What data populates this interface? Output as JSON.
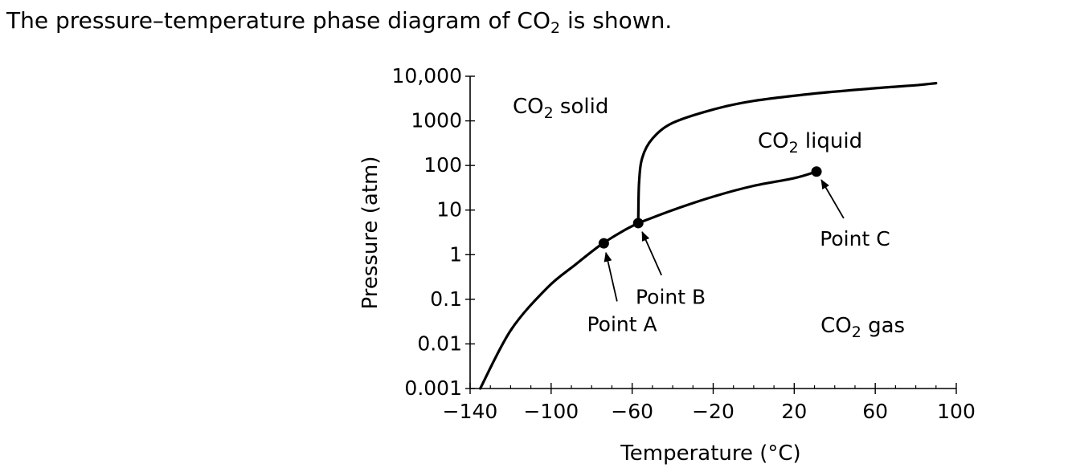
{
  "question": {
    "before": "The pressure–temperature phase diagram of CO",
    "subscript": "2",
    "after": " is shown."
  },
  "chart_data": {
    "type": "line",
    "xlabel": "Temperature (°C)",
    "ylabel": "Pressure (atm)",
    "xlim": [
      -140,
      100
    ],
    "ylim": [
      0.001,
      10000
    ],
    "y_scale": "log",
    "x_ticks": [
      -140,
      -100,
      -60,
      -20,
      20,
      60,
      100
    ],
    "x_tick_labels": [
      "−140",
      "−100",
      "−60",
      "−20",
      "20",
      "60",
      "100"
    ],
    "y_ticks": [
      0.001,
      0.01,
      0.1,
      1,
      10,
      100,
      1000,
      10000
    ],
    "y_tick_labels": [
      "0.001",
      "0.01",
      "0.1",
      "1",
      "10",
      "100",
      "1000",
      "10,000"
    ],
    "grid": false,
    "regions": [
      {
        "base": "CO",
        "sub": "2",
        "rest": " solid",
        "x": -119,
        "y": 1500
      },
      {
        "base": "CO",
        "sub": "2",
        "rest": " liquid",
        "x": 2,
        "y": 250
      },
      {
        "base": "CO",
        "sub": "2",
        "rest": " gas",
        "x": 33,
        "y": 0.018
      }
    ],
    "curves": [
      {
        "name": "sublimation-curve",
        "points": [
          [
            -135,
            0.001
          ],
          [
            -120,
            0.02
          ],
          [
            -102,
            0.18
          ],
          [
            -88,
            0.6
          ],
          [
            -76,
            1.6
          ],
          [
            -65,
            3.3
          ],
          [
            -57,
            5.1
          ]
        ]
      },
      {
        "name": "vaporization-curve",
        "points": [
          [
            -57,
            5.1
          ],
          [
            -40,
            10
          ],
          [
            -20,
            20
          ],
          [
            0,
            35
          ],
          [
            20,
            52
          ],
          [
            31,
            73
          ]
        ]
      },
      {
        "name": "melting-curve",
        "points": [
          [
            -57,
            5.1
          ],
          [
            -56.6,
            40
          ],
          [
            -55,
            150
          ],
          [
            -50,
            400
          ],
          [
            -40,
            900
          ],
          [
            -20,
            1800
          ],
          [
            0,
            2800
          ],
          [
            30,
            4100
          ],
          [
            60,
            5400
          ],
          [
            80,
            6300
          ],
          [
            90,
            7000
          ]
        ]
      }
    ],
    "points": [
      {
        "name": "Point A",
        "x": -74,
        "y": 1.8,
        "label_x": -65,
        "label_y": 0.029
      },
      {
        "name": "Point B",
        "x": -57,
        "y": 5.1,
        "label_x": -41,
        "label_y": 0.12
      },
      {
        "name": "Point C",
        "x": 31,
        "y": 73,
        "label_x": 50,
        "label_y": 2.4
      }
    ]
  }
}
